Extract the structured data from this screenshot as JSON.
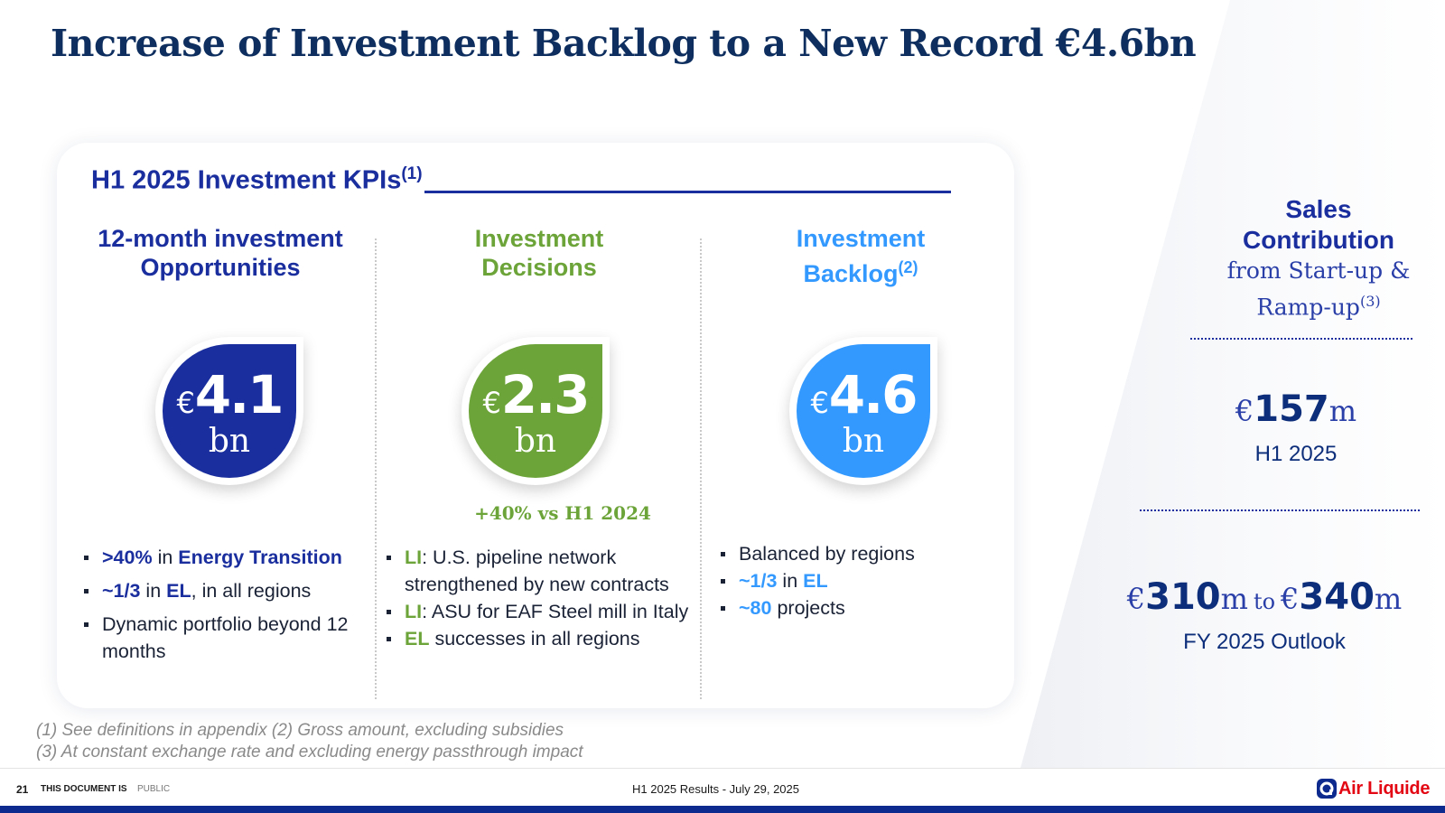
{
  "title": "Increase of Investment Backlog to a New Record €4.6bn",
  "kpi_card": {
    "heading": "H1 2025 Investment KPIs",
    "heading_note": "(1)",
    "columns": [
      {
        "heading_line1": "12-month investment",
        "heading_line2": "Opportunities",
        "heading_note": "",
        "currency": "€",
        "value": "4.1",
        "unit": "bn",
        "color": "#1a2e9e",
        "bullets": [
          {
            "parts": [
              {
                "text": ">40%",
                "hl": "navy"
              },
              {
                "text": " in ",
                "hl": ""
              },
              {
                "text": "Energy Transition",
                "hl": "navy"
              }
            ]
          },
          {
            "parts": [
              {
                "text": "~1/3",
                "hl": "navy"
              },
              {
                "text": " in ",
                "hl": ""
              },
              {
                "text": "EL",
                "hl": "navy"
              },
              {
                "text": ", in all regions",
                "hl": ""
              }
            ]
          },
          {
            "parts": [
              {
                "text": "Dynamic portfolio beyond 12 months",
                "hl": ""
              }
            ]
          }
        ]
      },
      {
        "heading_line1": "Investment",
        "heading_line2": "Decisions",
        "heading_note": "",
        "currency": "€",
        "value": "2.3",
        "unit": "bn",
        "color": "#6da43a",
        "growth": "+40% vs H1 2024",
        "bullets": [
          {
            "parts": [
              {
                "text": "LI",
                "hl": "green"
              },
              {
                "text": ": U.S. pipeline network strengthened by new contracts",
                "hl": ""
              }
            ]
          },
          {
            "parts": [
              {
                "text": "LI",
                "hl": "green"
              },
              {
                "text": ": ASU for EAF Steel mill in Italy",
                "hl": ""
              }
            ]
          },
          {
            "parts": [
              {
                "text": "EL",
                "hl": "green"
              },
              {
                "text": " successes in all regions",
                "hl": ""
              }
            ]
          }
        ]
      },
      {
        "heading_line1": "Investment",
        "heading_line2": "Backlog",
        "heading_note": "(2)",
        "currency": "€",
        "value": "4.6",
        "unit": "bn",
        "color": "#3399ff",
        "bullets": [
          {
            "parts": [
              {
                "text": "Balanced by regions",
                "hl": ""
              }
            ]
          },
          {
            "parts": [
              {
                "text": "~1/3",
                "hl": "blue"
              },
              {
                "text": " in ",
                "hl": ""
              },
              {
                "text": "EL",
                "hl": "blue"
              }
            ]
          },
          {
            "parts": [
              {
                "text": "~80",
                "hl": "blue"
              },
              {
                "text": " projects",
                "hl": ""
              }
            ]
          }
        ]
      }
    ]
  },
  "sales": {
    "line1": "Sales",
    "line2": "Contribution",
    "line3": "from Start-up &",
    "line4": "Ramp-up",
    "note": "(3)",
    "h1": {
      "currency": "€",
      "value": "157",
      "unit": "m",
      "label": "H1 2025"
    },
    "fy": {
      "currency1": "€",
      "value1": "310",
      "unit1": "m",
      "to": "to",
      "currency2": "€",
      "value2": "340",
      "unit2": "m",
      "label": "FY 2025 Outlook"
    }
  },
  "footnotes": {
    "line1": "(1) See definitions in appendix   (2) Gross amount, excluding subsidies",
    "line2": "(3) At constant exchange rate and excluding energy passthrough impact"
  },
  "footer": {
    "page": "21",
    "doc_is": "THIS DOCUMENT IS",
    "classification": "PUBLIC",
    "center": "H1 2025  Results  -  July 29, 2025",
    "logo_text": "Air Liquide"
  },
  "colors": {
    "navy": "#1a2e9e",
    "green": "#6da43a",
    "blue": "#3399ff",
    "title": "#0d2e5e",
    "logo_red": "#e30613"
  }
}
